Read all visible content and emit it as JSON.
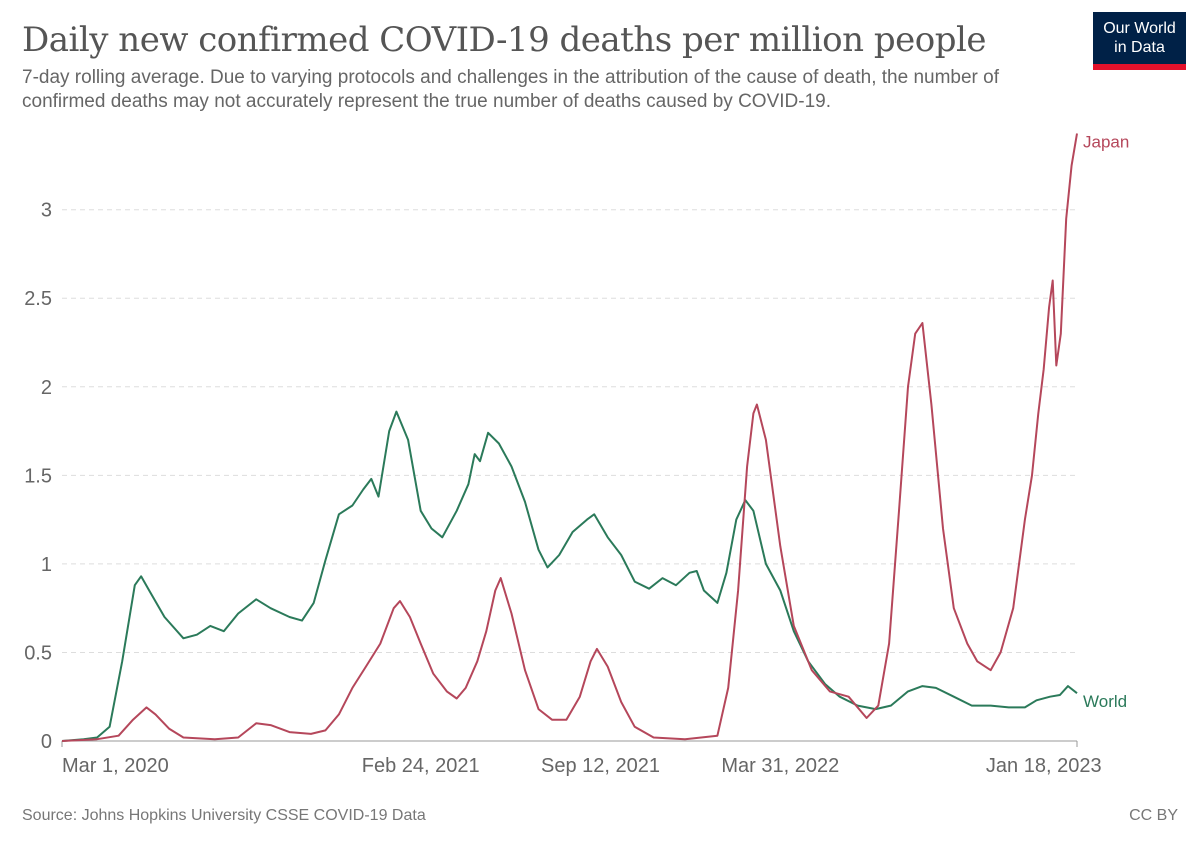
{
  "header": {
    "title": "Daily new confirmed COVID-19 deaths per million people",
    "subtitle": "7-day rolling average. Due to varying protocols and challenges in the attribution of the cause of death, the number of confirmed deaths may not accurately represent the true number of deaths caused by COVID-19.",
    "logo_line1": "Our World",
    "logo_line2": "in Data"
  },
  "footer": {
    "source": "Source: Johns Hopkins University CSSE COVID-19 Data",
    "license": "CC BY"
  },
  "colors": {
    "japan": "#b5475b",
    "world": "#2b7a5a",
    "grid": "#dddddd",
    "logo_bg": "#002147",
    "logo_bar": "#e3112b"
  },
  "chart_data": {
    "type": "line",
    "title": "Daily new confirmed COVID-19 deaths per million people",
    "xlabel": "",
    "ylabel": "",
    "x_range": [
      "2020-01-22",
      "2023-02-24"
    ],
    "ylim": [
      0,
      3.45
    ],
    "y_ticks": [
      0,
      0.5,
      1,
      1.5,
      2,
      2.5,
      3
    ],
    "y_tick_labels": [
      "0",
      "0.5",
      "1",
      "1.5",
      "2",
      "2.5",
      "3"
    ],
    "x_ticks": [
      {
        "date": "2020-03-01",
        "label": "Mar 1, 2020"
      },
      {
        "date": "2021-02-24",
        "label": "Feb 24, 2021"
      },
      {
        "date": "2021-09-12",
        "label": "Sep 12, 2021"
      },
      {
        "date": "2022-03-31",
        "label": "Mar 31, 2022"
      },
      {
        "date": "2023-01-18",
        "label": "Jan 18, 2023"
      }
    ],
    "grid": "horizontal dashed",
    "legend": "inline labels at line ends",
    "series": [
      {
        "name": "World",
        "label": "World",
        "color": "#2b7a5a",
        "points": [
          [
            "2020-01-22",
            0
          ],
          [
            "2020-02-15",
            0.01
          ],
          [
            "2020-03-01",
            0.02
          ],
          [
            "2020-03-15",
            0.08
          ],
          [
            "2020-03-29",
            0.45
          ],
          [
            "2020-04-12",
            0.88
          ],
          [
            "2020-04-19",
            0.93
          ],
          [
            "2020-04-28",
            0.85
          ],
          [
            "2020-05-15",
            0.7
          ],
          [
            "2020-06-05",
            0.58
          ],
          [
            "2020-06-20",
            0.6
          ],
          [
            "2020-07-05",
            0.65
          ],
          [
            "2020-07-20",
            0.62
          ],
          [
            "2020-08-05",
            0.72
          ],
          [
            "2020-08-25",
            0.8
          ],
          [
            "2020-09-10",
            0.75
          ],
          [
            "2020-10-01",
            0.7
          ],
          [
            "2020-10-15",
            0.68
          ],
          [
            "2020-10-28",
            0.78
          ],
          [
            "2020-11-10",
            1.02
          ],
          [
            "2020-11-25",
            1.28
          ],
          [
            "2020-12-10",
            1.33
          ],
          [
            "2020-12-22",
            1.42
          ],
          [
            "2020-12-31",
            1.48
          ],
          [
            "2021-01-08",
            1.38
          ],
          [
            "2021-01-20",
            1.75
          ],
          [
            "2021-01-28",
            1.86
          ],
          [
            "2021-02-10",
            1.7
          ],
          [
            "2021-02-24",
            1.3
          ],
          [
            "2021-03-08",
            1.2
          ],
          [
            "2021-03-20",
            1.15
          ],
          [
            "2021-04-05",
            1.3
          ],
          [
            "2021-04-18",
            1.45
          ],
          [
            "2021-04-25",
            1.62
          ],
          [
            "2021-05-01",
            1.58
          ],
          [
            "2021-05-10",
            1.74
          ],
          [
            "2021-05-22",
            1.68
          ],
          [
            "2021-06-05",
            1.55
          ],
          [
            "2021-06-20",
            1.35
          ],
          [
            "2021-07-05",
            1.08
          ],
          [
            "2021-07-15",
            0.98
          ],
          [
            "2021-07-28",
            1.05
          ],
          [
            "2021-08-12",
            1.18
          ],
          [
            "2021-08-28",
            1.25
          ],
          [
            "2021-09-05",
            1.28
          ],
          [
            "2021-09-20",
            1.15
          ],
          [
            "2021-10-05",
            1.05
          ],
          [
            "2021-10-20",
            0.9
          ],
          [
            "2021-11-05",
            0.86
          ],
          [
            "2021-11-20",
            0.92
          ],
          [
            "2021-12-05",
            0.88
          ],
          [
            "2021-12-20",
            0.95
          ],
          [
            "2021-12-28",
            0.96
          ],
          [
            "2022-01-05",
            0.85
          ],
          [
            "2022-01-20",
            0.78
          ],
          [
            "2022-01-30",
            0.95
          ],
          [
            "2022-02-10",
            1.25
          ],
          [
            "2022-02-20",
            1.36
          ],
          [
            "2022-03-01",
            1.3
          ],
          [
            "2022-03-15",
            1.0
          ],
          [
            "2022-03-31",
            0.85
          ],
          [
            "2022-04-15",
            0.62
          ],
          [
            "2022-05-01",
            0.45
          ],
          [
            "2022-05-20",
            0.32
          ],
          [
            "2022-06-05",
            0.25
          ],
          [
            "2022-06-25",
            0.2
          ],
          [
            "2022-07-15",
            0.18
          ],
          [
            "2022-08-01",
            0.2
          ],
          [
            "2022-08-20",
            0.28
          ],
          [
            "2022-09-05",
            0.31
          ],
          [
            "2022-09-20",
            0.3
          ],
          [
            "2022-10-10",
            0.25
          ],
          [
            "2022-10-30",
            0.2
          ],
          [
            "2022-11-20",
            0.2
          ],
          [
            "2022-12-10",
            0.19
          ],
          [
            "2022-12-28",
            0.19
          ],
          [
            "2023-01-10",
            0.23
          ],
          [
            "2023-01-25",
            0.25
          ],
          [
            "2023-02-05",
            0.26
          ],
          [
            "2023-02-14",
            0.31
          ],
          [
            "2023-02-24",
            0.27
          ]
        ]
      },
      {
        "name": "Japan",
        "label": "Japan",
        "color": "#b5475b",
        "points": [
          [
            "2020-01-22",
            0
          ],
          [
            "2020-03-01",
            0.01
          ],
          [
            "2020-03-25",
            0.03
          ],
          [
            "2020-04-10",
            0.12
          ],
          [
            "2020-04-25",
            0.19
          ],
          [
            "2020-05-05",
            0.15
          ],
          [
            "2020-05-20",
            0.07
          ],
          [
            "2020-06-05",
            0.02
          ],
          [
            "2020-07-10",
            0.01
          ],
          [
            "2020-08-05",
            0.02
          ],
          [
            "2020-08-25",
            0.1
          ],
          [
            "2020-09-10",
            0.09
          ],
          [
            "2020-10-01",
            0.05
          ],
          [
            "2020-10-25",
            0.04
          ],
          [
            "2020-11-10",
            0.06
          ],
          [
            "2020-11-25",
            0.15
          ],
          [
            "2020-12-10",
            0.3
          ],
          [
            "2020-12-25",
            0.42
          ],
          [
            "2021-01-10",
            0.55
          ],
          [
            "2021-01-25",
            0.75
          ],
          [
            "2021-02-01",
            0.79
          ],
          [
            "2021-02-12",
            0.7
          ],
          [
            "2021-02-24",
            0.55
          ],
          [
            "2021-03-10",
            0.38
          ],
          [
            "2021-03-25",
            0.28
          ],
          [
            "2021-04-05",
            0.24
          ],
          [
            "2021-04-15",
            0.3
          ],
          [
            "2021-04-28",
            0.45
          ],
          [
            "2021-05-08",
            0.62
          ],
          [
            "2021-05-18",
            0.85
          ],
          [
            "2021-05-24",
            0.92
          ],
          [
            "2021-06-05",
            0.72
          ],
          [
            "2021-06-20",
            0.4
          ],
          [
            "2021-07-05",
            0.18
          ],
          [
            "2021-07-20",
            0.12
          ],
          [
            "2021-08-05",
            0.12
          ],
          [
            "2021-08-20",
            0.25
          ],
          [
            "2021-09-01",
            0.45
          ],
          [
            "2021-09-08",
            0.52
          ],
          [
            "2021-09-20",
            0.42
          ],
          [
            "2021-10-05",
            0.22
          ],
          [
            "2021-10-20",
            0.08
          ],
          [
            "2021-11-10",
            0.02
          ],
          [
            "2021-12-15",
            0.01
          ],
          [
            "2022-01-20",
            0.03
          ],
          [
            "2022-02-01",
            0.3
          ],
          [
            "2022-02-12",
            0.85
          ],
          [
            "2022-02-22",
            1.55
          ],
          [
            "2022-03-01",
            1.85
          ],
          [
            "2022-03-05",
            1.9
          ],
          [
            "2022-03-15",
            1.7
          ],
          [
            "2022-03-31",
            1.1
          ],
          [
            "2022-04-15",
            0.65
          ],
          [
            "2022-05-05",
            0.4
          ],
          [
            "2022-05-25",
            0.28
          ],
          [
            "2022-06-15",
            0.25
          ],
          [
            "2022-07-05",
            0.13
          ],
          [
            "2022-07-18",
            0.2
          ],
          [
            "2022-07-30",
            0.55
          ],
          [
            "2022-08-10",
            1.3
          ],
          [
            "2022-08-20",
            2.0
          ],
          [
            "2022-08-28",
            2.3
          ],
          [
            "2022-09-05",
            2.36
          ],
          [
            "2022-09-15",
            1.9
          ],
          [
            "2022-09-28",
            1.2
          ],
          [
            "2022-10-10",
            0.75
          ],
          [
            "2022-10-25",
            0.55
          ],
          [
            "2022-11-05",
            0.45
          ],
          [
            "2022-11-20",
            0.4
          ],
          [
            "2022-12-01",
            0.5
          ],
          [
            "2022-12-15",
            0.75
          ],
          [
            "2022-12-28",
            1.25
          ],
          [
            "2023-01-05",
            1.5
          ],
          [
            "2023-01-12",
            1.85
          ],
          [
            "2023-01-18",
            2.1
          ],
          [
            "2023-01-24",
            2.45
          ],
          [
            "2023-01-28",
            2.6
          ],
          [
            "2023-02-01",
            2.12
          ],
          [
            "2023-02-06",
            2.3
          ],
          [
            "2023-02-12",
            2.95
          ],
          [
            "2023-02-18",
            3.25
          ],
          [
            "2023-02-24",
            3.43
          ]
        ]
      }
    ]
  }
}
